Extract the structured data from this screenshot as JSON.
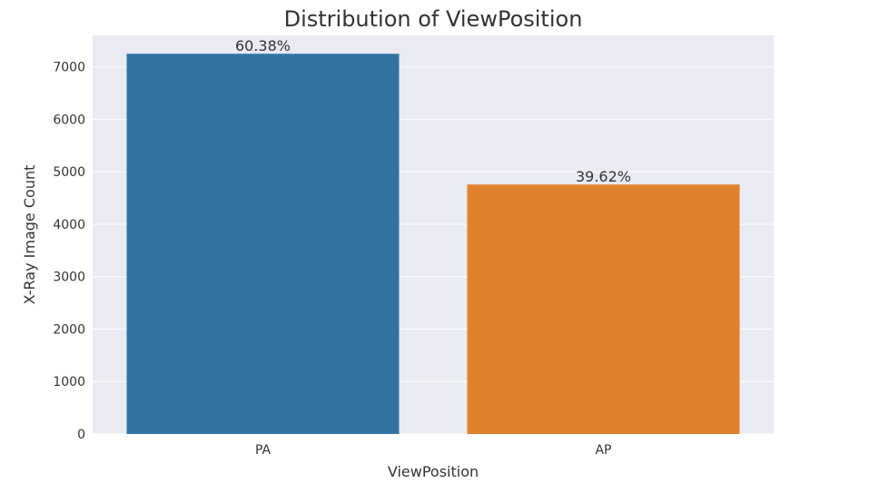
{
  "chart_data": {
    "type": "bar",
    "title": "Distribution of ViewPosition",
    "xlabel": "ViewPosition",
    "ylabel": "X-Ray Image Count",
    "categories": [
      "PA",
      "AP"
    ],
    "values": [
      7250,
      4757
    ],
    "data_labels": [
      "60.38%",
      "39.62%"
    ],
    "ylim": [
      0,
      7600
    ],
    "yticks": [
      0,
      1000,
      2000,
      3000,
      4000,
      5000,
      6000,
      7000
    ],
    "colors": [
      "#3274a1",
      "#e1812c"
    ],
    "plot_background": "#eaeaf2",
    "grid": true,
    "legend": "none"
  }
}
